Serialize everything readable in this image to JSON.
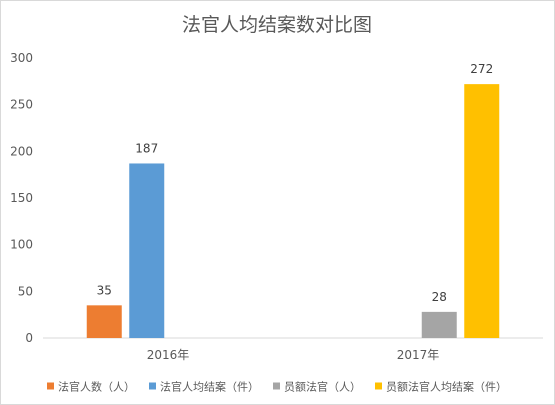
{
  "chart_data": {
    "type": "bar",
    "title": "法官人均结案数对比图",
    "categories": [
      "2016年",
      "2017年"
    ],
    "ylim": [
      0,
      300
    ],
    "yticks": [
      0,
      50,
      100,
      150,
      200,
      250,
      300
    ],
    "grid": false,
    "legend_position": "bottom",
    "series": [
      {
        "name": "法官人数（人）",
        "color": "#ED7D31",
        "values": [
          35,
          null
        ]
      },
      {
        "name": "法官人均结案（件）",
        "color": "#5B9BD5",
        "values": [
          187,
          null
        ]
      },
      {
        "name": "员额法官（人）",
        "color": "#A5A5A5",
        "values": [
          null,
          28
        ]
      },
      {
        "name": "员额法官人均结案（件）",
        "color": "#FFC000",
        "values": [
          null,
          272
        ]
      }
    ]
  }
}
